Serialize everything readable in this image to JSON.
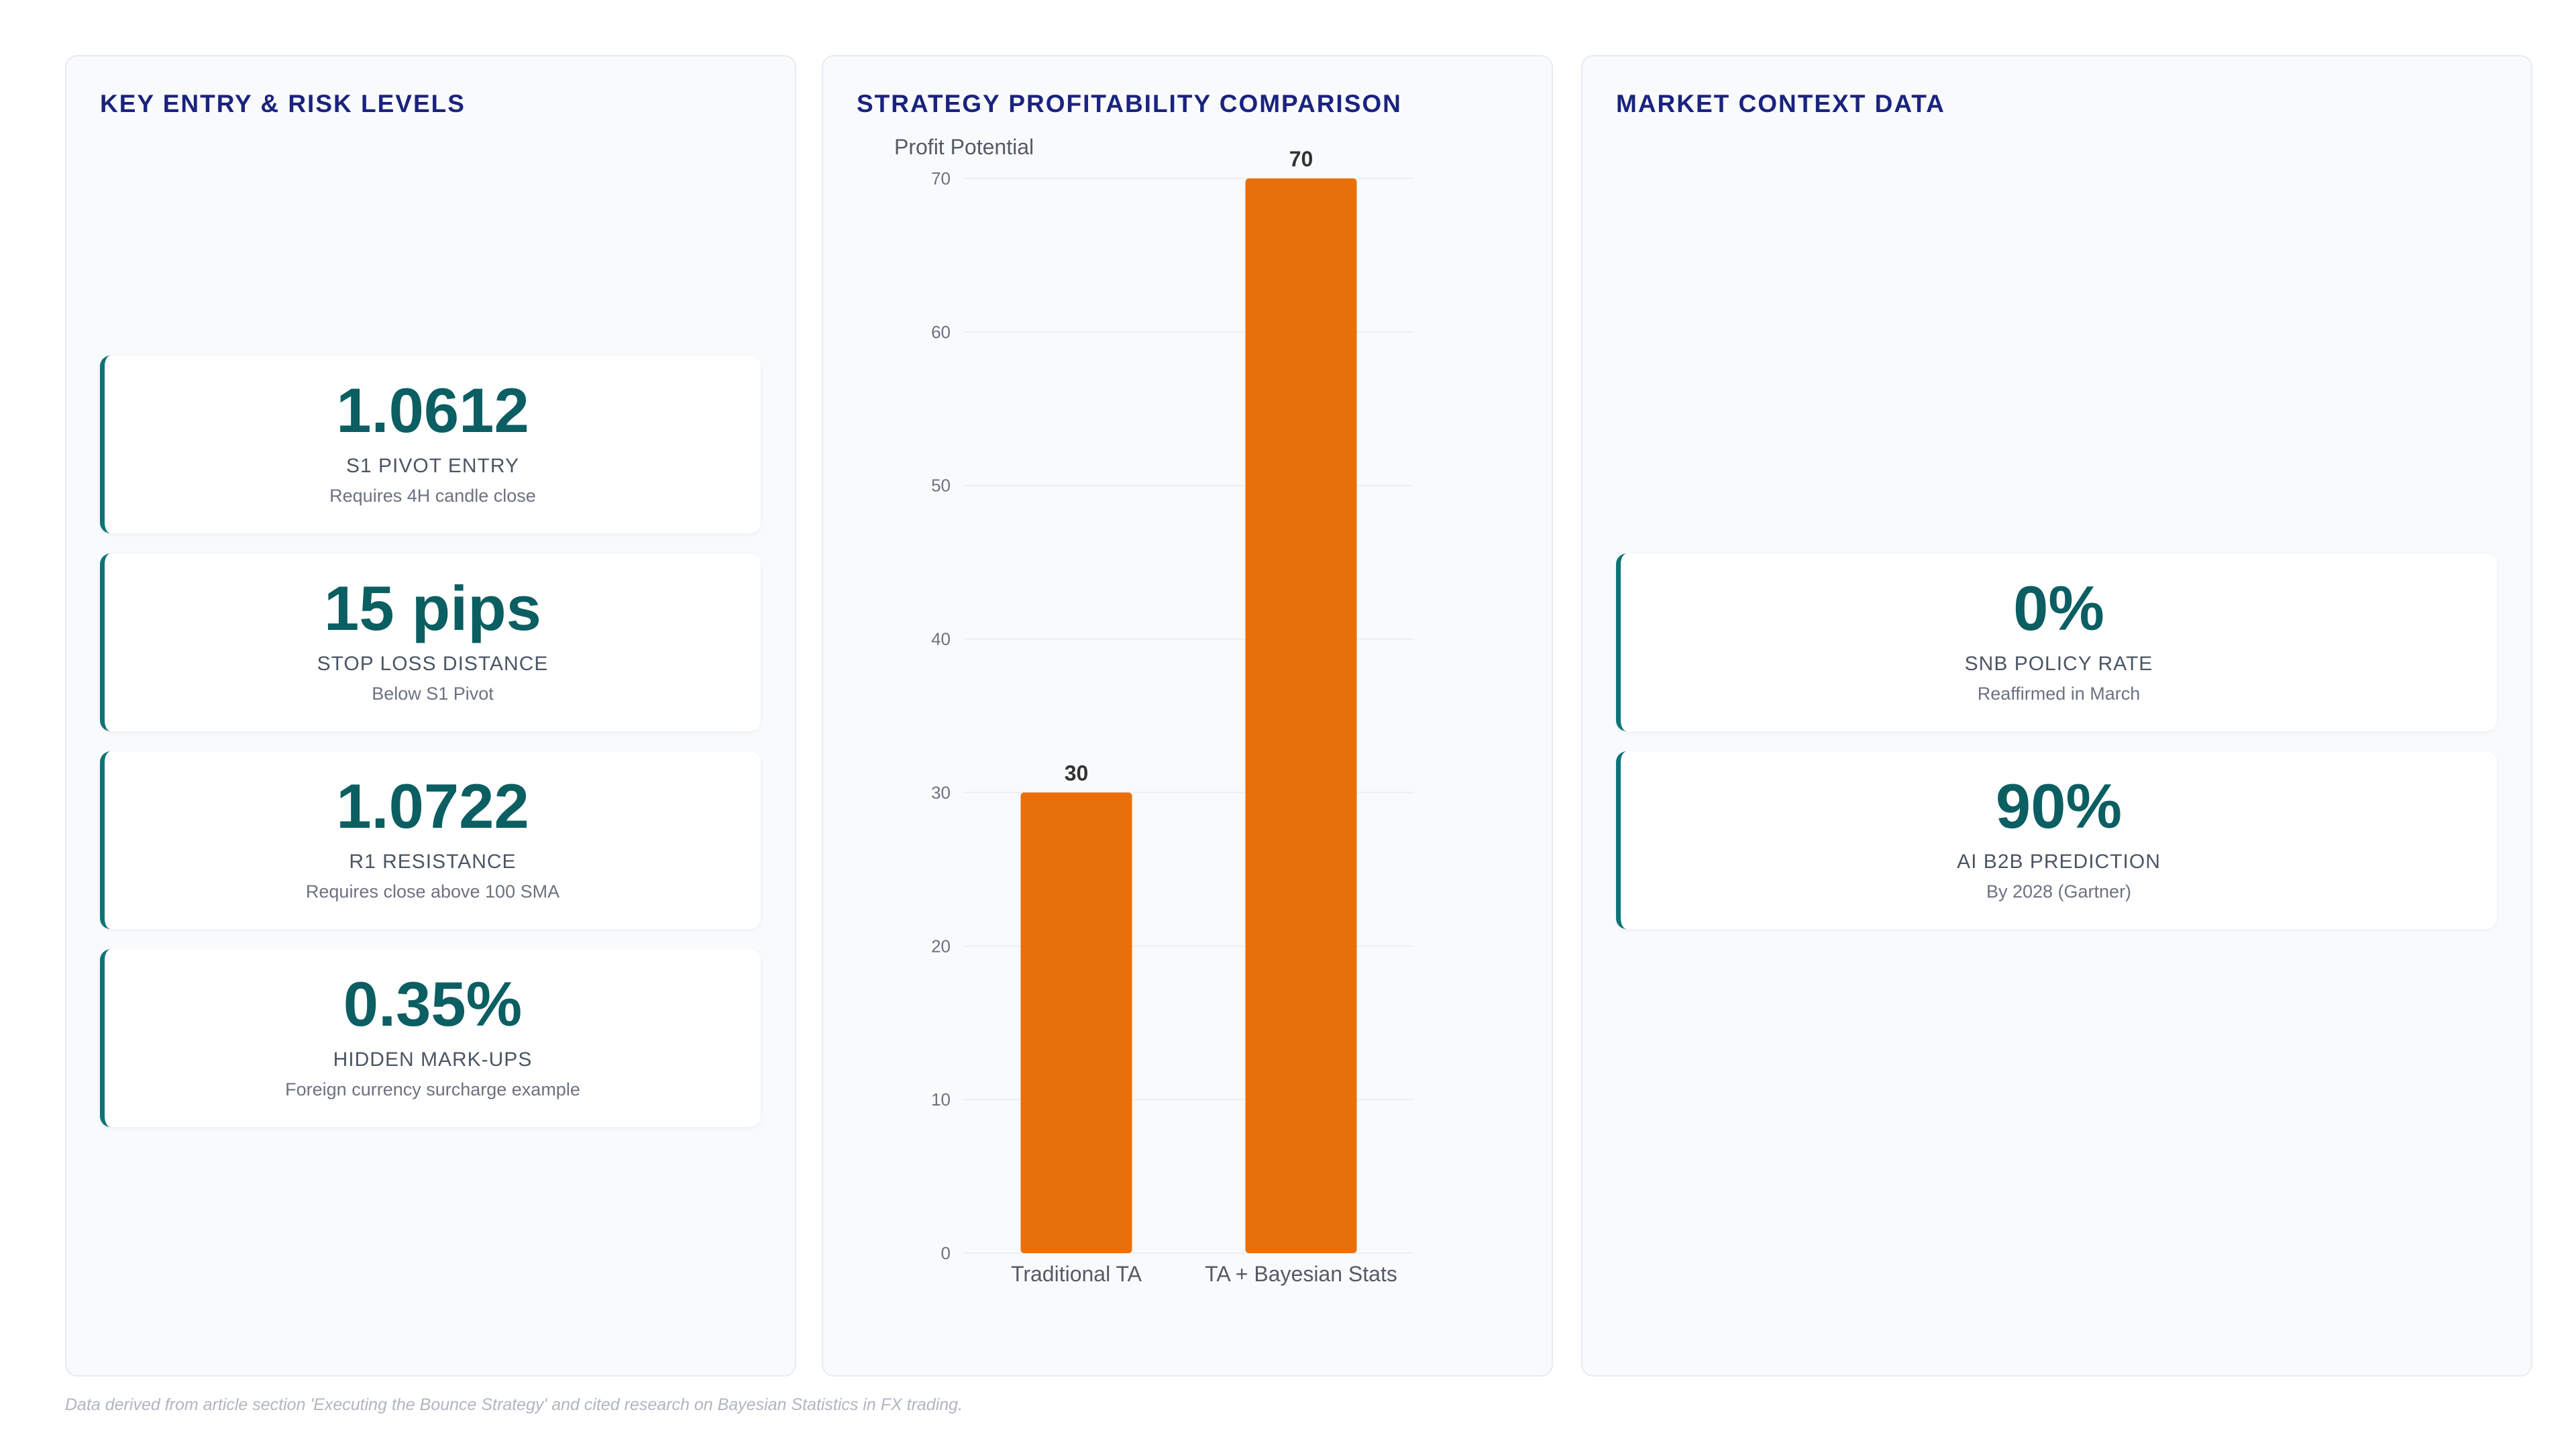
{
  "left_panel": {
    "title": "KEY ENTRY & RISK LEVELS",
    "cards": [
      {
        "value": "1.0612",
        "label": "S1 PIVOT ENTRY",
        "sub": "Requires 4H candle close"
      },
      {
        "value": "15 pips",
        "label": "STOP LOSS DISTANCE",
        "sub": "Below S1 Pivot"
      },
      {
        "value": "1.0722",
        "label": "R1 RESISTANCE",
        "sub": "Requires close above 100 SMA"
      },
      {
        "value": "0.35%",
        "label": "HIDDEN MARK-UPS",
        "sub": "Foreign currency surcharge example"
      }
    ]
  },
  "mid_panel": {
    "title": "STRATEGY PROFITABILITY COMPARISON"
  },
  "right_panel": {
    "title": "MARKET CONTEXT DATA",
    "cards": [
      {
        "value": "0%",
        "label": "SNB POLICY RATE",
        "sub": "Reaffirmed in March"
      },
      {
        "value": "90%",
        "label": "AI B2B PREDICTION",
        "sub": "By 2028 (Gartner)"
      }
    ]
  },
  "chart_data": {
    "type": "bar",
    "title": "",
    "ylabel": "Profit Potential",
    "xlabel": "",
    "categories": [
      "Traditional TA",
      "TA + Bayesian Stats"
    ],
    "values": [
      30,
      70
    ],
    "ylim": [
      0,
      70
    ],
    "yticks": [
      0,
      10,
      20,
      30,
      40,
      50,
      60,
      70
    ],
    "grid": true,
    "data_labels": true,
    "bar_color": "#e8700b"
  },
  "footnote": "Data derived from article section 'Executing the Bounce Strategy' and cited research on Bayesian Statistics in FX trading.",
  "colors": {
    "title": "#1a237e",
    "value": "#0b5e61",
    "accent": "#0d7377",
    "bar": "#e8700b"
  }
}
